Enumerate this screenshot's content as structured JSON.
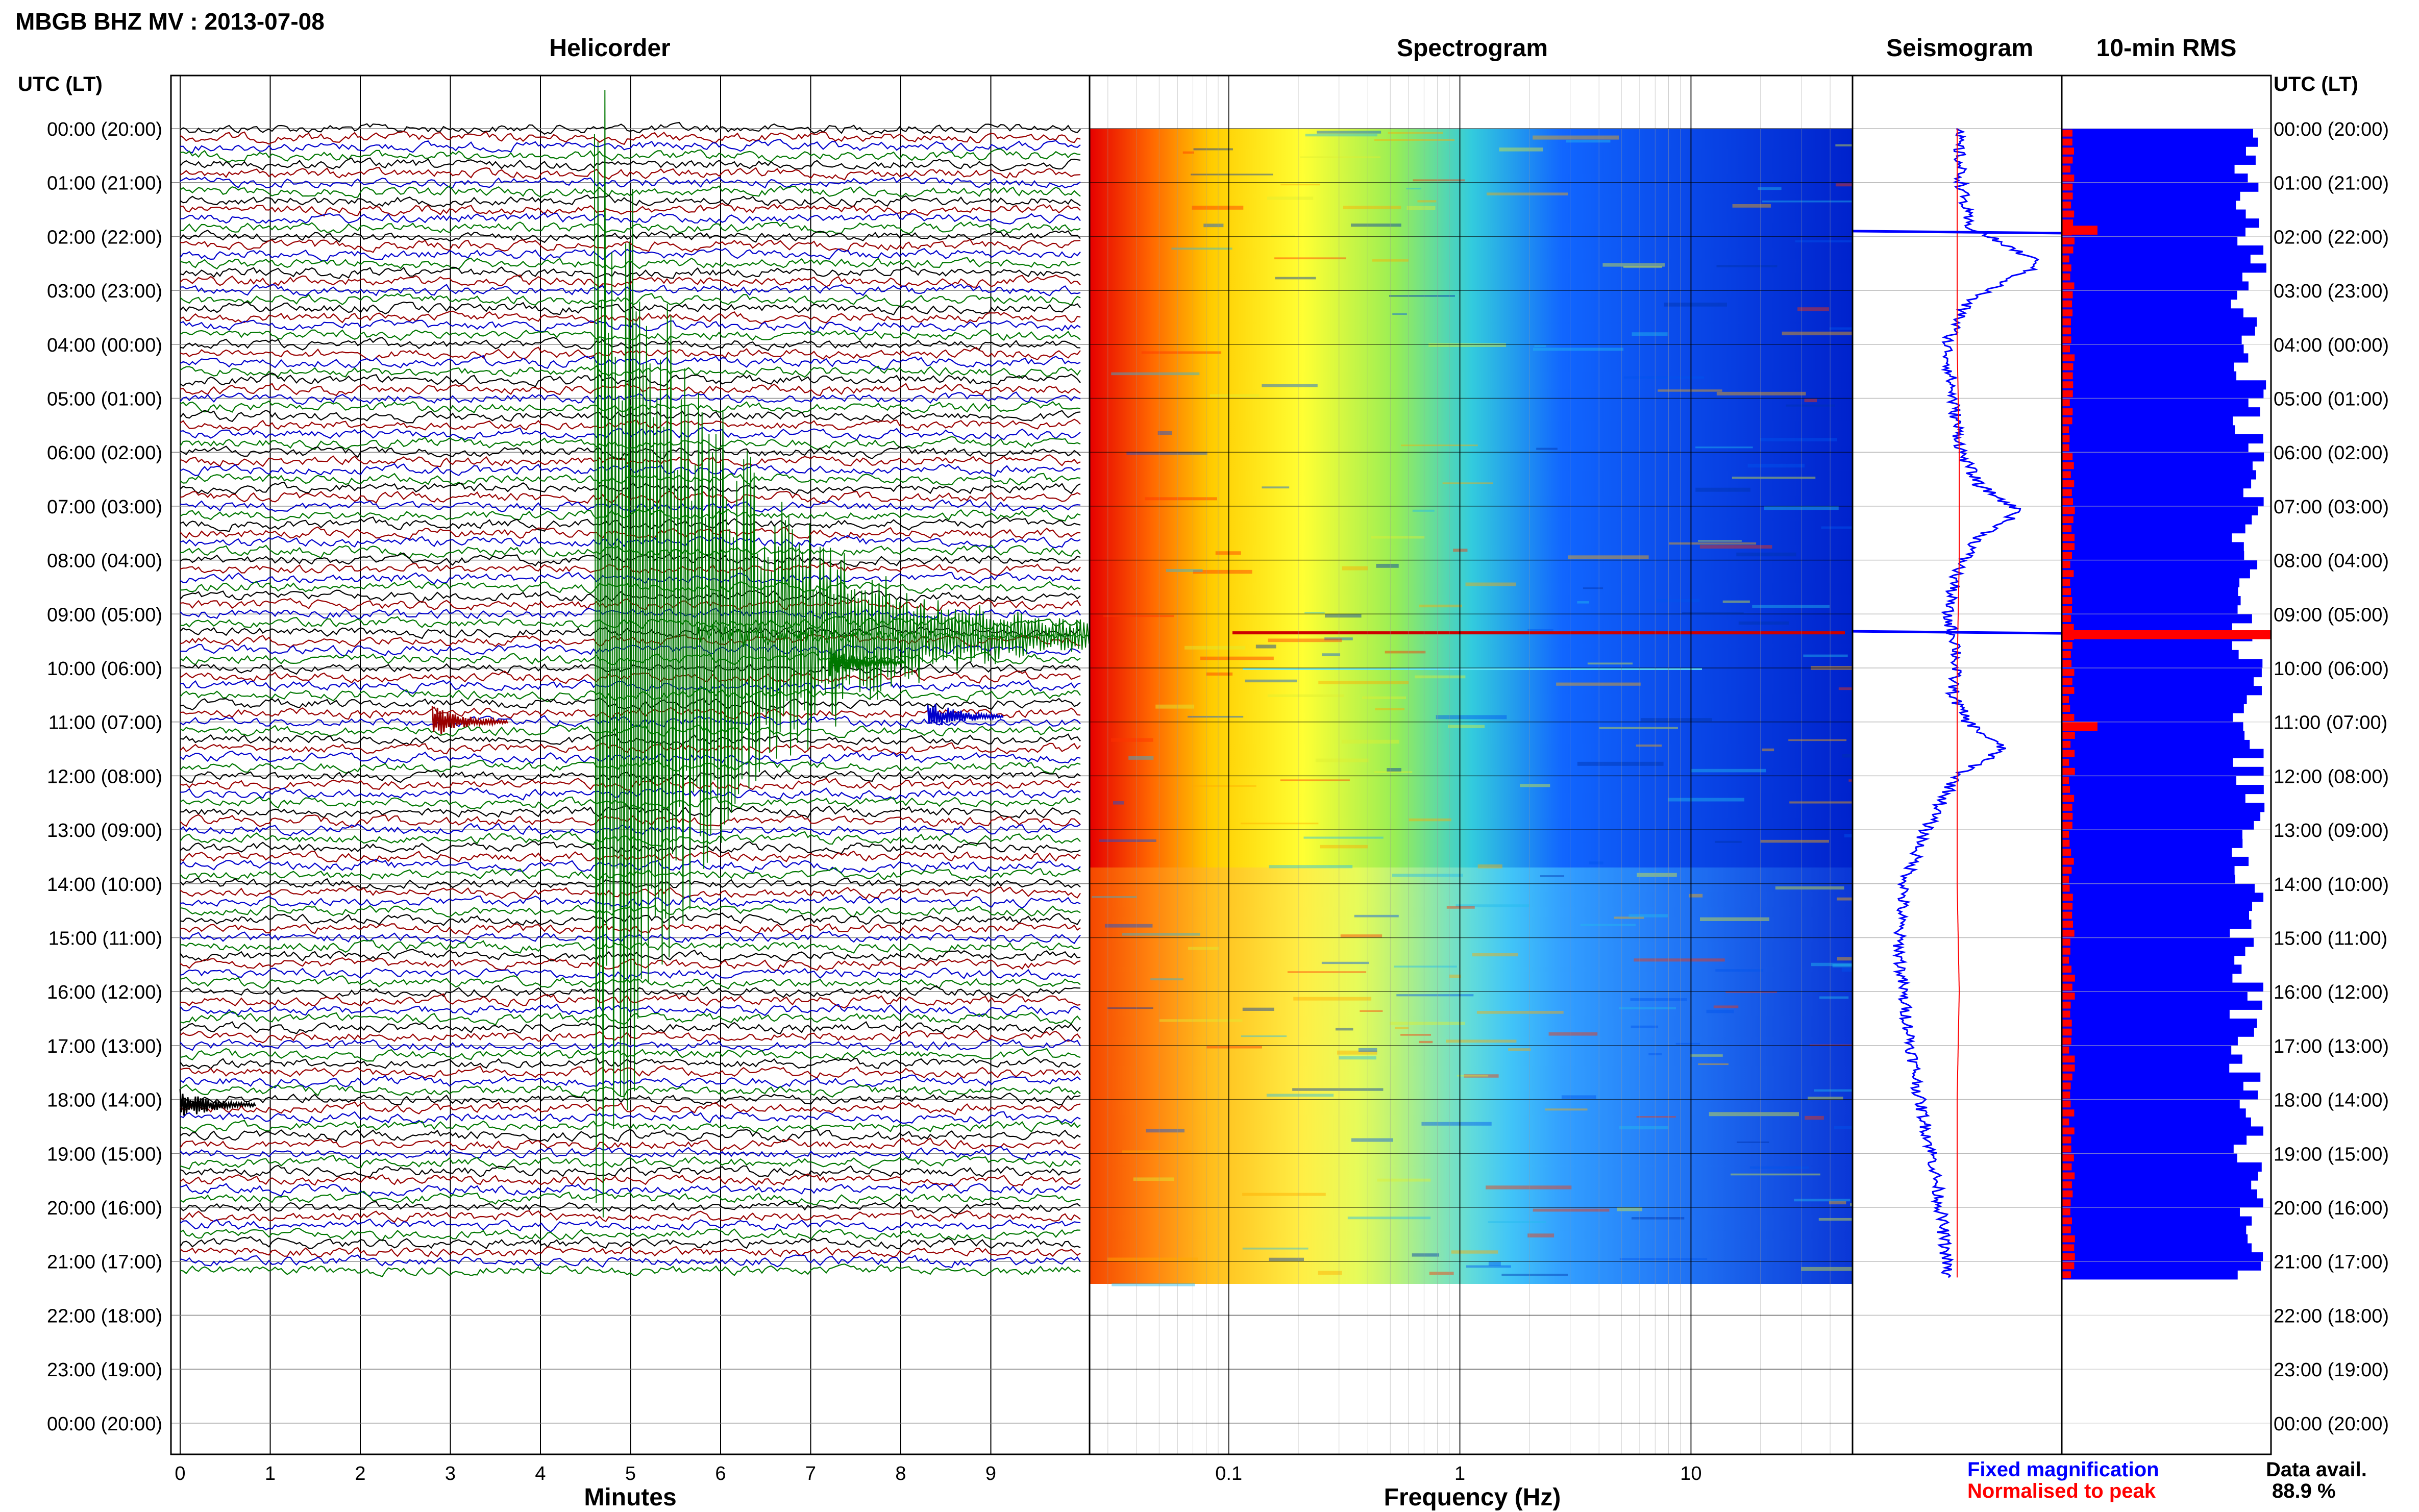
{
  "header": {
    "title": "MBGB BHZ MV : 2013-07-08"
  },
  "time_axis": {
    "label_left": "UTC (LT)",
    "label_right": "UTC (LT)",
    "ticks": [
      "00:00 (20:00)",
      "01:00 (21:00)",
      "02:00 (22:00)",
      "03:00 (23:00)",
      "04:00 (00:00)",
      "05:00 (01:00)",
      "06:00 (02:00)",
      "07:00 (03:00)",
      "08:00 (04:00)",
      "09:00 (05:00)",
      "10:00 (06:00)",
      "11:00 (07:00)",
      "12:00 (08:00)",
      "13:00 (09:00)",
      "14:00 (10:00)",
      "15:00 (11:00)",
      "16:00 (12:00)",
      "17:00 (13:00)",
      "18:00 (14:00)",
      "19:00 (15:00)",
      "20:00 (16:00)",
      "21:00 (17:00)",
      "22:00 (18:00)",
      "23:00 (19:00)",
      "00:00 (20:00)"
    ]
  },
  "chart_data": [
    {
      "type": "line",
      "title": "Helicorder",
      "xlabel": "Minutes",
      "x_ticks": [
        "0",
        "1",
        "2",
        "3",
        "4",
        "5",
        "6",
        "7",
        "8",
        "9"
      ],
      "xlim": [
        0,
        10
      ],
      "ylim_hours": [
        0,
        24
      ],
      "trace_colors": [
        "#000000",
        "#990000",
        "#0000cc",
        "#007700"
      ],
      "traces_per_hour": 6,
      "trace_count": 128,
      "events": [
        {
          "hour": 9.4,
          "minute": 4.6,
          "color": "#007700",
          "description": "large event"
        },
        {
          "hour": 9.9,
          "minute": 7.2,
          "color": "#007700"
        },
        {
          "hour": 11.0,
          "minute": 2.8,
          "color": "#990000"
        },
        {
          "hour": 10.9,
          "minute": 8.3,
          "color": "#0000cc"
        },
        {
          "hour": 18.1,
          "minute": 0.0,
          "color": "#000000"
        }
      ]
    },
    {
      "type": "heatmap",
      "title": "Spectrogram",
      "xlabel": "Frequency (Hz)",
      "x_scale": "log",
      "x_ticks": [
        "0.1",
        "1",
        "10"
      ],
      "xlim": [
        0.025,
        50
      ],
      "ylim_hours": [
        0,
        21.33
      ],
      "colormap": [
        "#e60000",
        "#ff6600",
        "#ffcc00",
        "#ffff33",
        "#99ee55",
        "#33ccdd",
        "#1166ff",
        "#0022cc"
      ]
    },
    {
      "type": "line",
      "title": "Seismogram",
      "grid": true,
      "series": [
        {
          "name": "Fixed magnification",
          "color": "#0000ff",
          "hours": [
            0,
            1,
            1.8,
            2.5,
            3.2,
            4,
            5,
            6,
            6.6,
            7.1,
            7.6,
            8.2,
            9,
            9.6,
            10.5,
            11,
            11.5,
            12,
            13,
            14,
            15,
            16,
            17,
            18,
            19,
            20,
            21,
            21.33
          ],
          "values": [
            0.5,
            0.52,
            0.55,
            0.9,
            0.55,
            0.45,
            0.48,
            0.52,
            0.6,
            0.8,
            0.6,
            0.5,
            0.45,
            0.5,
            0.48,
            0.55,
            0.72,
            0.5,
            0.35,
            0.25,
            0.22,
            0.24,
            0.28,
            0.32,
            0.38,
            0.42,
            0.45,
            0.45
          ]
        },
        {
          "name": "Normalised to peak",
          "color": "#ff0000",
          "hours": [
            0,
            2,
            4,
            6,
            8,
            10,
            12,
            14,
            16,
            18,
            20,
            21.33
          ],
          "values": [
            0.5,
            0.5,
            0.5,
            0.51,
            0.51,
            0.5,
            0.5,
            0.5,
            0.51,
            0.5,
            0.5,
            0.5
          ]
        }
      ]
    },
    {
      "type": "bar",
      "title": "10-min RMS",
      "orientation": "horizontal",
      "series_colors": {
        "fixed": "#0000ff",
        "normalised": "#ff0000"
      },
      "peak_hours": [
        1.8,
        9.3,
        11.0
      ],
      "data_availability_label": "Data avail.",
      "data_availability": "88.9 %"
    }
  ],
  "legend": {
    "fixed": "Fixed magnification",
    "normalised": "Normalised to peak"
  }
}
